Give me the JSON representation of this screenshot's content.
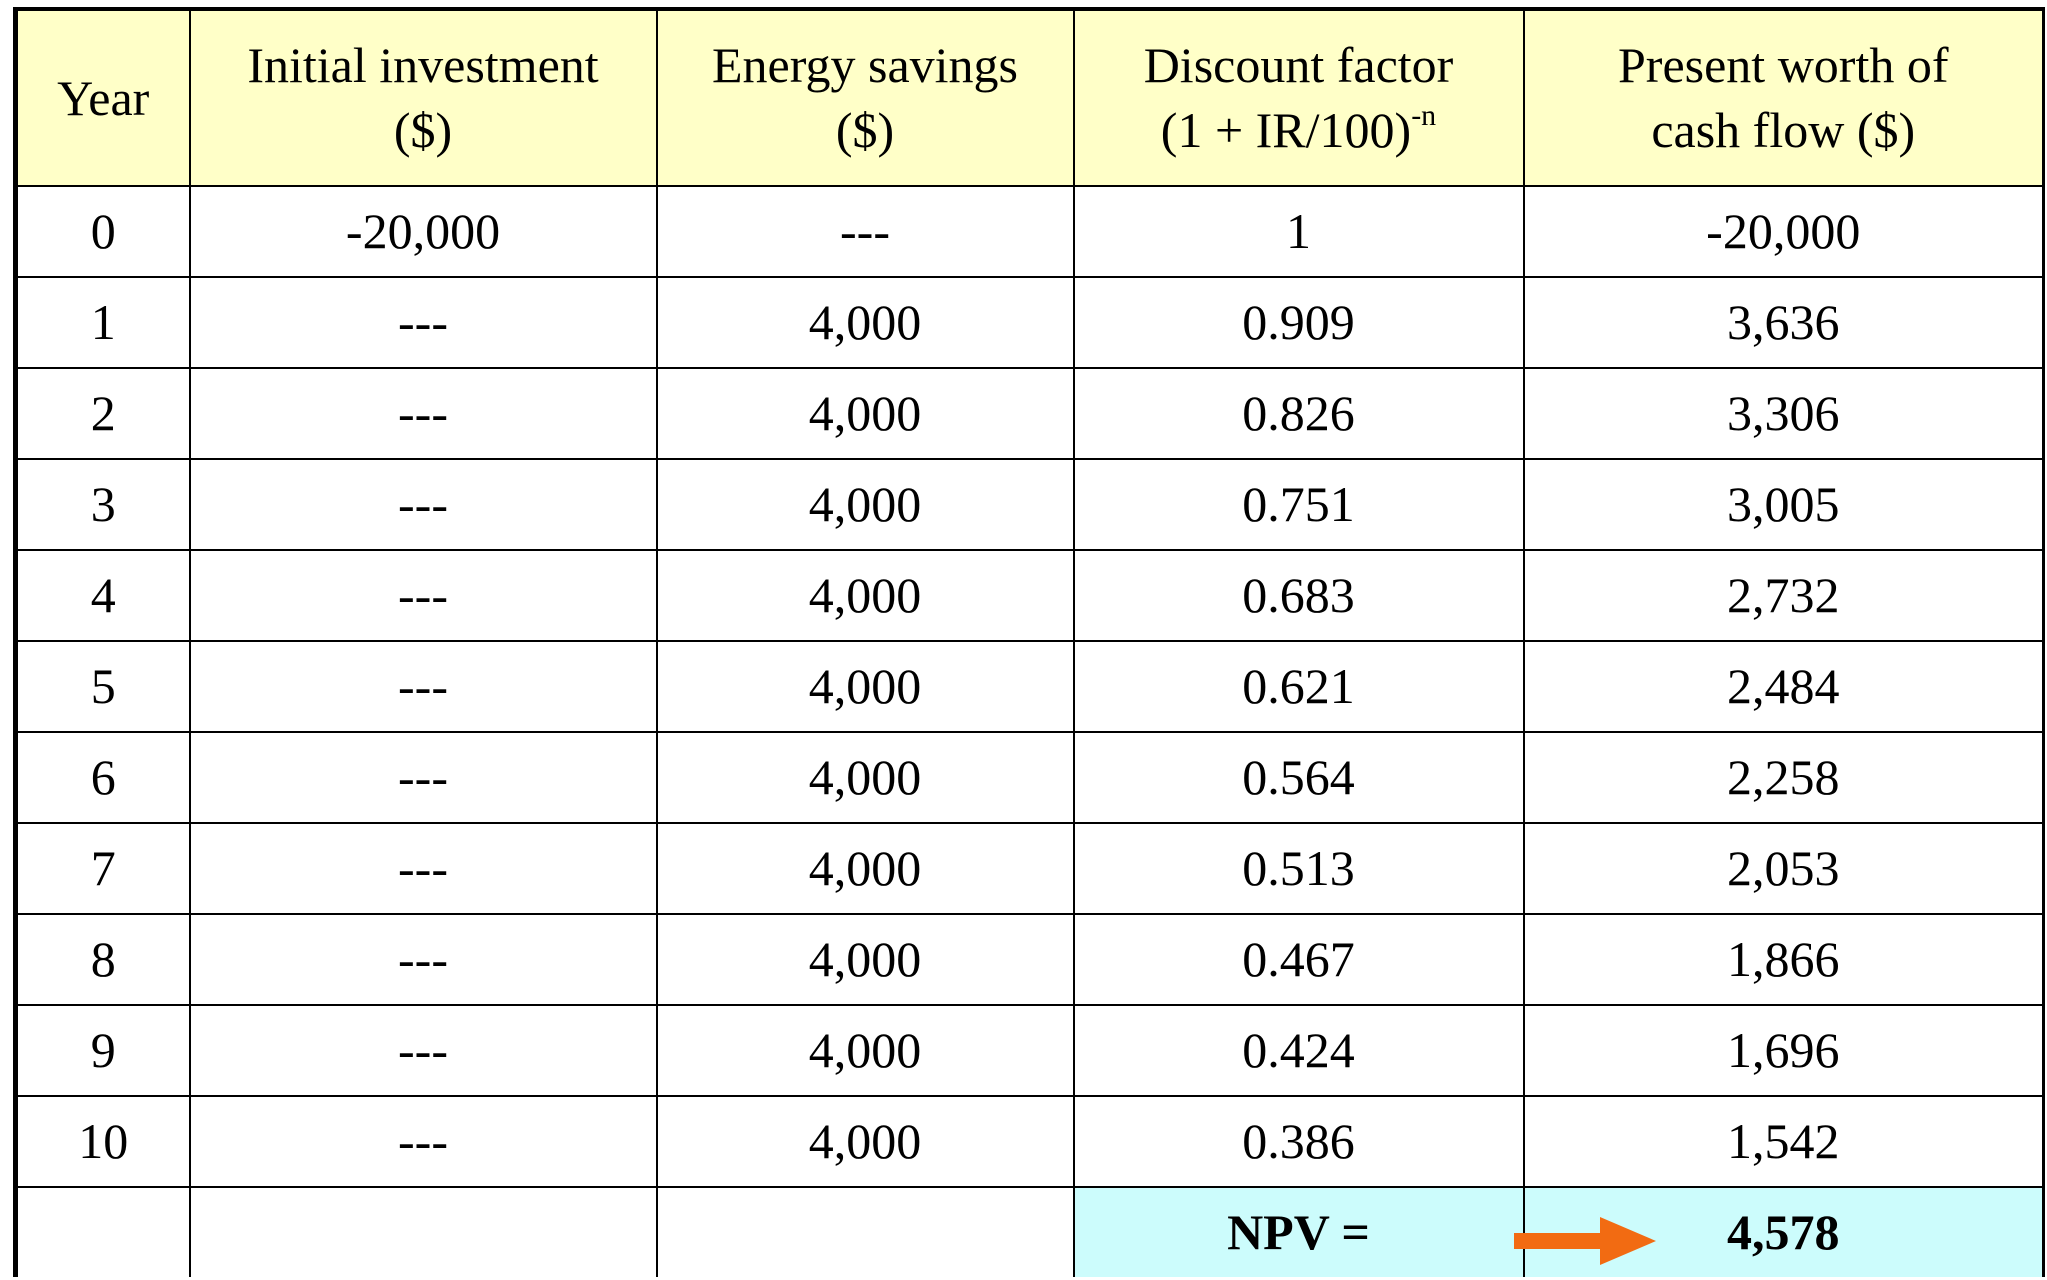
{
  "table": {
    "header": [
      [
        "Year"
      ],
      [
        "Initial investment",
        "($)"
      ],
      [
        "Energy savings",
        "($)"
      ],
      [
        "Discount factor"
      ],
      [
        "Present worth of",
        "cash flow ($)"
      ]
    ],
    "formula": {
      "base": "(1 + IR/100)",
      "exponent": "-n"
    },
    "rows": [
      [
        "0",
        "-20,000",
        "---",
        "1",
        "-20,000"
      ],
      [
        "1",
        "---",
        "4,000",
        "0.909",
        "3,636"
      ],
      [
        "2",
        "---",
        "4,000",
        "0.826",
        "3,306"
      ],
      [
        "3",
        "---",
        "4,000",
        "0.751",
        "3,005"
      ],
      [
        "4",
        "---",
        "4,000",
        "0.683",
        "2,732"
      ],
      [
        "5",
        "---",
        "4,000",
        "0.621",
        "2,484"
      ],
      [
        "6",
        "---",
        "4,000",
        "0.564",
        "2,258"
      ],
      [
        "7",
        "---",
        "4,000",
        "0.513",
        "2,053"
      ],
      [
        "8",
        "---",
        "4,000",
        "0.467",
        "1,866"
      ],
      [
        "9",
        "---",
        "4,000",
        "0.424",
        "1,696"
      ],
      [
        "10",
        "---",
        "4,000",
        "0.386",
        "1,542"
      ]
    ],
    "total": {
      "label": "NPV =",
      "value": "4,578"
    }
  }
}
